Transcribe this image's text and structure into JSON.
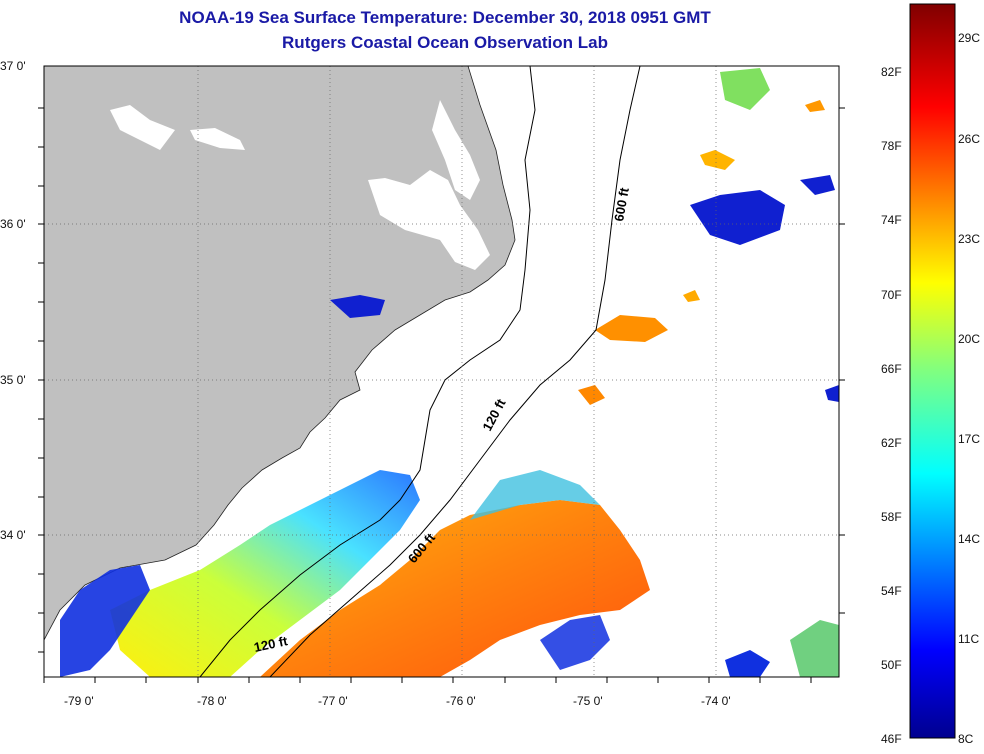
{
  "header": {
    "title": "NOAA-19 Sea Surface Temperature:  December 30, 2018 0951 GMT",
    "subtitle": "Rutgers Coastal Ocean Observation Lab"
  },
  "map": {
    "lat_labels": [
      "37 0'",
      "36 0'",
      "35 0'",
      "34 0'"
    ],
    "lon_labels": [
      "-79 0'",
      "-78 0'",
      "-77 0'",
      "-76 0'",
      "-75 0'",
      "-74 0'"
    ],
    "contour_labels": [
      "600 ft",
      "120 ft",
      "600 ft",
      "120 ft"
    ],
    "land_color": "#c0c0c0",
    "no_data_color": "#ffffff"
  },
  "colorbar": {
    "f_labels": [
      "82F",
      "78F",
      "74F",
      "70F",
      "66F",
      "62F",
      "58F",
      "54F",
      "50F",
      "46F"
    ],
    "c_labels": [
      "29C",
      "26C",
      "23C",
      "20C",
      "17C",
      "14C",
      "11C",
      "8C"
    ],
    "min_c": 8,
    "max_c": 30
  }
}
